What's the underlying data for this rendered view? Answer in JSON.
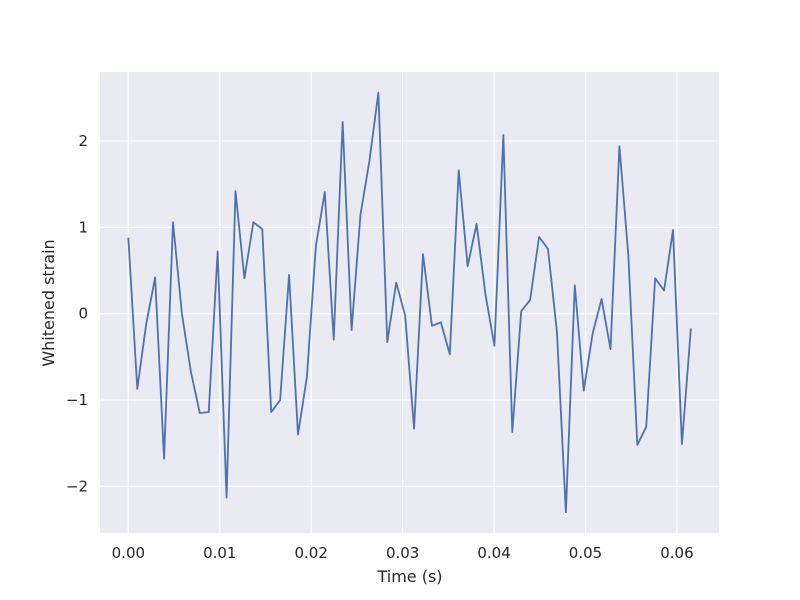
{
  "chart_data": {
    "type": "line",
    "title": "",
    "xlabel": "Time (s)",
    "ylabel": "Whitened strain",
    "xlim": [
      -0.0031,
      0.0646
    ],
    "ylim": [
      -2.54,
      2.8
    ],
    "grid": true,
    "background_color": "#eaeaf2",
    "grid_color": "#ffffff",
    "line_color": "#4c72b0",
    "x_ticks": [
      0.0,
      0.01,
      0.02,
      0.03,
      0.04,
      0.05,
      0.06
    ],
    "x_tick_labels": [
      "0.00",
      "0.01",
      "0.02",
      "0.03",
      "0.04",
      "0.05",
      "0.06"
    ],
    "y_ticks": [
      -2,
      -1,
      0,
      1,
      2
    ],
    "y_tick_labels": [
      "−2",
      "−1",
      "0",
      "1",
      "2"
    ],
    "series": [
      {
        "x": [
          0.0,
          0.000977,
          0.001953,
          0.00293,
          0.003906,
          0.004883,
          0.005859,
          0.006836,
          0.007813,
          0.008789,
          0.009766,
          0.010742,
          0.011719,
          0.012695,
          0.013672,
          0.014648,
          0.015625,
          0.016602,
          0.017578,
          0.018555,
          0.019531,
          0.020508,
          0.021484,
          0.022461,
          0.023438,
          0.024414,
          0.025391,
          0.026367,
          0.027344,
          0.02832,
          0.029297,
          0.030273,
          0.03125,
          0.032227,
          0.033203,
          0.03418,
          0.035156,
          0.036133,
          0.037109,
          0.038086,
          0.039063,
          0.040039,
          0.041016,
          0.041992,
          0.042969,
          0.043945,
          0.044922,
          0.045898,
          0.046875,
          0.047852,
          0.048828,
          0.049805,
          0.050781,
          0.051758,
          0.052734,
          0.053711,
          0.054688,
          0.055664,
          0.056641,
          0.057617,
          0.058594,
          0.05957,
          0.060547,
          0.061523
        ],
        "values": [
          0.88,
          -0.87,
          -0.12,
          0.42,
          -1.68,
          1.06,
          0.0,
          -0.67,
          -1.15,
          -1.14,
          0.72,
          -2.13,
          1.42,
          0.41,
          1.06,
          0.98,
          -1.14,
          -1.0,
          0.45,
          -1.4,
          -0.73,
          0.78,
          1.41,
          -0.3,
          2.22,
          -0.19,
          1.15,
          1.77,
          2.56,
          -0.33,
          0.36,
          -0.02,
          -1.33,
          0.69,
          -0.14,
          -0.1,
          -0.47,
          1.66,
          0.55,
          1.04,
          0.22,
          -0.37,
          2.07,
          -1.37,
          0.03,
          0.16,
          0.89,
          0.75,
          -0.21,
          -2.3,
          0.33,
          -0.89,
          -0.23,
          0.17,
          -0.41,
          1.94,
          0.67,
          -1.52,
          -1.31,
          0.41,
          0.27,
          0.97,
          -1.51,
          -0.17
        ]
      }
    ]
  }
}
